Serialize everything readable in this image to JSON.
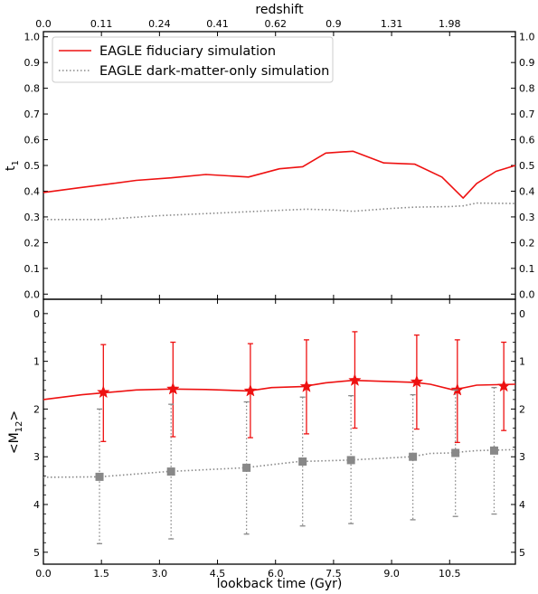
{
  "chart_data": {
    "type": "line",
    "x_axis": {
      "label": "lookback time (Gyr)",
      "range": [
        0,
        12.2
      ],
      "ticks": [
        0,
        1.5,
        3,
        4.5,
        6,
        7.5,
        9,
        10.5
      ],
      "tick_labels": [
        "0.0",
        "1.5",
        "3.0",
        "4.5",
        "6.0",
        "7.5",
        "9.0",
        "10.5"
      ]
    },
    "top_axis": {
      "label": "redshift",
      "tick_labels": [
        "0.0",
        "0.11",
        "0.24",
        "0.41",
        "0.62",
        "0.9",
        "1.31",
        "1.98"
      ]
    },
    "legend": {
      "placement": "top-left",
      "entries": [
        {
          "label": "EAGLE fiduciary simulation",
          "color": "#ee1111",
          "style": "solid"
        },
        {
          "label": "EAGLE dark-matter-only simulation",
          "color": "#888888",
          "style": "dotted"
        }
      ]
    },
    "panels": [
      {
        "name": "top",
        "ylabel": "t1",
        "ylim": [
          -0.02,
          1.02
        ],
        "yticks": [
          0,
          0.1,
          0.2,
          0.3,
          0.4,
          0.5,
          0.6,
          0.7,
          0.8,
          0.9,
          1.0
        ],
        "ytick_labels": [
          "0.0",
          "0.1",
          "0.2",
          "0.3",
          "0.4",
          "0.5",
          "0.6",
          "0.7",
          "0.8",
          "0.9",
          "1.0"
        ],
        "series": [
          {
            "name": "EAGLE fiduciary simulation",
            "color": "#ee1111",
            "style": "solid",
            "x": [
              0,
              0.9,
              1.8,
              2.4,
              3.3,
              4.2,
              5.3,
              6.1,
              6.7,
              7.3,
              8.0,
              8.8,
              9.6,
              10.3,
              10.85,
              11.2,
              11.7,
              12.2
            ],
            "y": [
              0.395,
              0.413,
              0.43,
              0.442,
              0.452,
              0.465,
              0.455,
              0.487,
              0.495,
              0.548,
              0.555,
              0.51,
              0.505,
              0.455,
              0.373,
              0.43,
              0.477,
              0.5
            ]
          },
          {
            "name": "EAGLE dark-matter-only simulation",
            "color": "#888888",
            "style": "dotted",
            "x": [
              0,
              1.5,
              3.0,
              4.5,
              6.0,
              6.8,
              7.5,
              8.0,
              9.0,
              9.6,
              10.5,
              10.85,
              11.2,
              12.2
            ],
            "y": [
              0.29,
              0.29,
              0.305,
              0.315,
              0.325,
              0.33,
              0.327,
              0.322,
              0.333,
              0.338,
              0.34,
              0.343,
              0.354,
              0.352
            ]
          }
        ]
      },
      {
        "name": "bottom",
        "ylabel": "<M12>",
        "ylim": [
          5.25,
          -0.3
        ],
        "yticks": [
          0,
          1,
          2,
          3,
          4,
          5
        ],
        "ytick_labels": [
          "0",
          "1",
          "2",
          "3",
          "4",
          "5"
        ],
        "series": [
          {
            "name": "EAGLE fiduciary simulation",
            "color": "#ee1111",
            "style": "solid",
            "x": [
              0,
              1.0,
              2.4,
              3.3,
              4.2,
              5.3,
              5.9,
              6.7,
              7.3,
              8.0,
              8.8,
              9.6,
              10.0,
              10.6,
              11.2,
              12.2
            ],
            "y": [
              1.8,
              1.7,
              1.6,
              1.58,
              1.59,
              1.62,
              1.55,
              1.53,
              1.45,
              1.4,
              1.42,
              1.44,
              1.48,
              1.6,
              1.5,
              1.48
            ],
            "markers": [
              {
                "x": 1.55,
                "y": 1.65,
                "lo": 0.65,
                "hi": 2.68
              },
              {
                "x": 3.35,
                "y": 1.58,
                "lo": 0.6,
                "hi": 2.58
              },
              {
                "x": 5.35,
                "y": 1.62,
                "lo": 0.63,
                "hi": 2.6
              },
              {
                "x": 6.8,
                "y": 1.53,
                "lo": 0.55,
                "hi": 2.52
              },
              {
                "x": 8.05,
                "y": 1.4,
                "lo": 0.38,
                "hi": 2.4
              },
              {
                "x": 9.65,
                "y": 1.43,
                "lo": 0.45,
                "hi": 2.42
              },
              {
                "x": 10.7,
                "y": 1.6,
                "lo": 0.55,
                "hi": 2.7
              },
              {
                "x": 11.9,
                "y": 1.52,
                "lo": 0.6,
                "hi": 2.45
              }
            ]
          },
          {
            "name": "EAGLE dark-matter-only simulation",
            "color": "#888888",
            "style": "dotted",
            "x": [
              0,
              1.45,
              3.2,
              5.2,
              6.6,
              7.9,
              9.5,
              10.0,
              10.5,
              11.2,
              12.2
            ],
            "y": [
              3.43,
              3.42,
              3.31,
              3.23,
              3.1,
              3.07,
              3.0,
              2.93,
              2.92,
              2.87,
              2.85
            ],
            "markers": [
              {
                "x": 1.45,
                "y": 3.42,
                "lo": 2.0,
                "hi": 4.82
              },
              {
                "x": 3.3,
                "y": 3.31,
                "lo": 1.9,
                "hi": 4.72
              },
              {
                "x": 5.25,
                "y": 3.23,
                "lo": 1.85,
                "hi": 4.62
              },
              {
                "x": 6.7,
                "y": 3.1,
                "lo": 1.75,
                "hi": 4.45
              },
              {
                "x": 7.95,
                "y": 3.07,
                "lo": 1.72,
                "hi": 4.4
              },
              {
                "x": 9.55,
                "y": 3.0,
                "lo": 1.7,
                "hi": 4.32
              },
              {
                "x": 10.65,
                "y": 2.92,
                "lo": 1.6,
                "hi": 4.25
              },
              {
                "x": 11.65,
                "y": 2.87,
                "lo": 1.55,
                "hi": 4.2
              }
            ]
          }
        ]
      }
    ]
  }
}
